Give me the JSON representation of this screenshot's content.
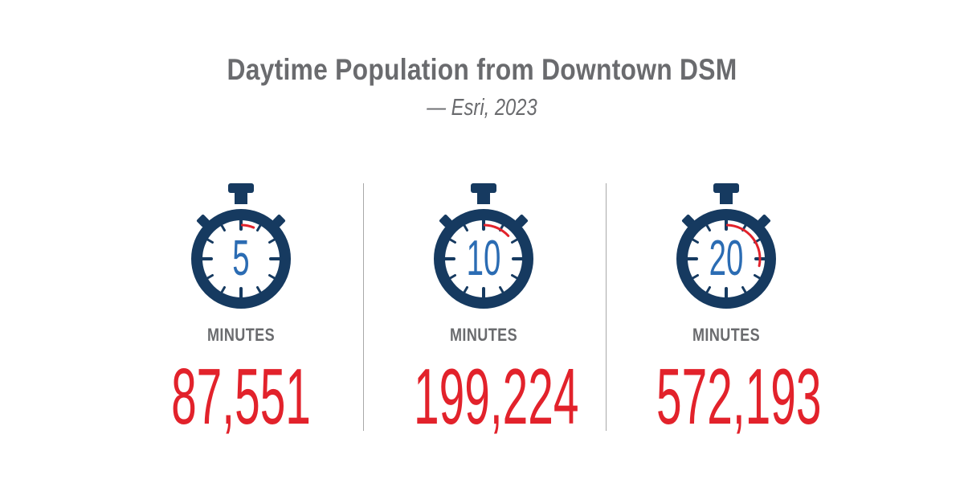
{
  "header": {
    "title": "Daytime Population from Downtown DSM",
    "subtitle": "— Esri, 2023"
  },
  "colors": {
    "stopwatch": "#163a60",
    "number": "#2b6cb3",
    "accent": "#e2222b",
    "text": "#6a6b6e",
    "divider": "#a8a8a8"
  },
  "stats": [
    {
      "minutes": "5",
      "unit_label": "MINUTES",
      "population": "87,551"
    },
    {
      "minutes": "10",
      "unit_label": "MINUTES",
      "population": "199,224"
    },
    {
      "minutes": "20",
      "unit_label": "MINUTES",
      "population": "572,193"
    }
  ]
}
